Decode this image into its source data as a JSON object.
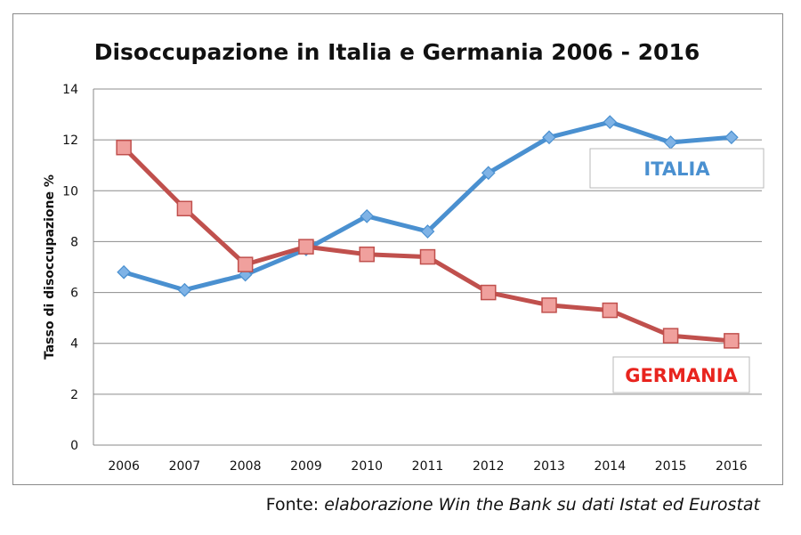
{
  "source": {
    "label": "Fonte:",
    "text": "elaborazione Win the Bank su dati Istat ed Eurostat"
  },
  "chart_data": {
    "type": "line",
    "title": "Disoccupazione in Italia e Germania 2006 - 2016",
    "xlabel": "",
    "ylabel": "Tasso di disoccupazione %",
    "ylim": [
      0,
      14
    ],
    "yticks": [
      0,
      2,
      4,
      6,
      8,
      10,
      12,
      14
    ],
    "grid": true,
    "categories": [
      "2006",
      "2007",
      "2008",
      "2009",
      "2010",
      "2011",
      "2012",
      "2013",
      "2014",
      "2015",
      "2016"
    ],
    "series": [
      {
        "name": "ITALIA",
        "color": "#4a90d0",
        "marker": "diamond",
        "values": [
          6.8,
          6.1,
          6.7,
          7.7,
          9.0,
          8.4,
          10.7,
          12.1,
          12.7,
          11.9,
          12.1
        ]
      },
      {
        "name": "GERMANIA",
        "color": "#c0504d",
        "label_color": "#e8241e",
        "marker": "square",
        "values": [
          11.7,
          9.3,
          7.1,
          7.8,
          7.5,
          7.4,
          6.0,
          5.5,
          5.3,
          4.3,
          4.1
        ]
      }
    ]
  }
}
